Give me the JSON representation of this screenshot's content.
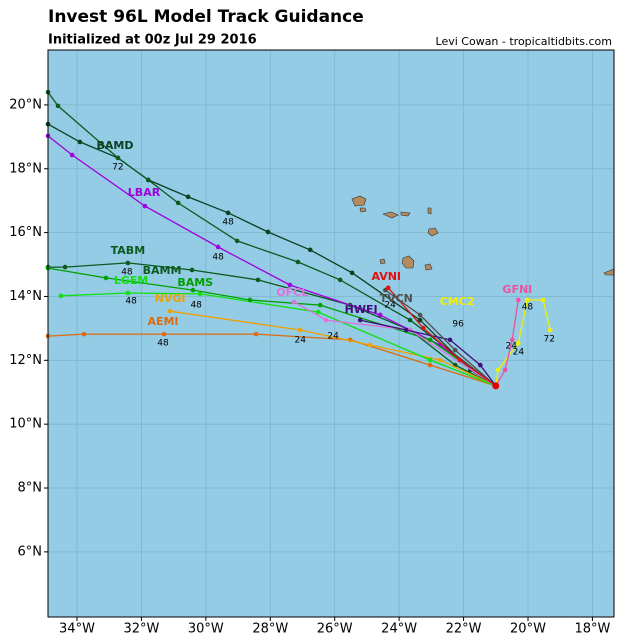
{
  "header": {
    "title": "Invest 96L Model Track Guidance",
    "subtitle": "Initialized at 00z Jul 29 2016",
    "credit": "Levi Cowan - tropicaltidbits.com"
  },
  "map": {
    "type": "map",
    "xlim": [
      -34.9,
      -17.33
    ],
    "ylim": [
      3.96,
      21.72
    ],
    "xticks": [
      {
        "value": -34,
        "label": "34°W"
      },
      {
        "value": -32,
        "label": "32°W"
      },
      {
        "value": -30,
        "label": "30°W"
      },
      {
        "value": -28,
        "label": "28°W"
      },
      {
        "value": -26,
        "label": "26°W"
      },
      {
        "value": -24,
        "label": "24°W"
      },
      {
        "value": -22,
        "label": "22°W"
      },
      {
        "value": -20,
        "label": "20°W"
      },
      {
        "value": -18,
        "label": "18°W"
      }
    ],
    "yticks": [
      {
        "value": 6,
        "label": "6°N"
      },
      {
        "value": 8,
        "label": "8°N"
      },
      {
        "value": 10,
        "label": "10°N"
      },
      {
        "value": 12,
        "label": "12°N"
      },
      {
        "value": 14,
        "label": "14°N"
      },
      {
        "value": 16,
        "label": "16°N"
      },
      {
        "value": 18,
        "label": "18°N"
      },
      {
        "value": 20,
        "label": "20°N"
      }
    ],
    "grid": true,
    "tracks": [
      {
        "name": "TABM",
        "color": "#0b5a1e",
        "label_lon": -32.42,
        "label_lat": 15.42,
        "lon": [
          -21.0,
          -22.26,
          -23.66,
          -25.52,
          -28.38,
          -30.43,
          -32.42,
          -34.37,
          -34.9
        ],
        "lat": [
          11.2,
          11.85,
          12.95,
          13.73,
          14.52,
          14.83,
          15.05,
          14.92,
          14.92
        ]
      },
      {
        "name": "BAMD",
        "color": "#0b4020",
        "label_lon": -32.82,
        "label_lat": 18.71,
        "lon": [
          -21.0,
          -21.79,
          -23.35,
          -25.46,
          -26.76,
          -28.07,
          -29.31,
          -30.55,
          -31.79,
          -32.73,
          -33.91,
          -34.9
        ],
        "lat": [
          11.2,
          11.7,
          13.26,
          14.74,
          15.46,
          16.02,
          16.62,
          17.12,
          17.65,
          18.34,
          18.84,
          19.4
        ]
      },
      {
        "name": "BAMM",
        "color": "#0b5a1e",
        "label_lon": -31.36,
        "label_lat": 14.8,
        "lon": [
          -21.0,
          -23.66,
          -25.83,
          -27.14,
          -29.03,
          -30.86,
          -31.79,
          -32.73,
          -34.59,
          -34.9
        ],
        "lat": [
          11.2,
          13.26,
          14.52,
          15.08,
          15.74,
          16.93,
          17.65,
          18.34,
          19.97,
          20.4
        ]
      },
      {
        "name": "LBAR",
        "color": "#a000e0",
        "label_lon": -31.92,
        "label_lat": 17.24,
        "lon": [
          -21.0,
          -22.73,
          -24.59,
          -27.39,
          -29.62,
          -31.89,
          -34.15,
          -34.9
        ],
        "lat": [
          11.2,
          12.48,
          13.42,
          14.36,
          15.55,
          16.83,
          18.43,
          19.03
        ]
      },
      {
        "name": "AEMI",
        "color": "#e06a10",
        "label_lon": -31.33,
        "label_lat": 13.2,
        "lon": [
          -21.0,
          -23.04,
          -25.52,
          -28.44,
          -31.3,
          -33.78,
          -34.9
        ],
        "lat": [
          11.2,
          11.85,
          12.64,
          12.82,
          12.82,
          12.82,
          12.76
        ]
      },
      {
        "name": "NVGI",
        "color": "#f0a000",
        "label_lon": -31.11,
        "label_lat": 13.92,
        "lon": [
          -21.0,
          -22.73,
          -24.9,
          -27.07,
          -31.11
        ],
        "lat": [
          11.2,
          12.01,
          12.48,
          12.95,
          13.54
        ]
      },
      {
        "name": "LGEM",
        "color": "#10e010",
        "label_lon": -32.32,
        "label_lat": 14.48,
        "lon": [
          -21.0,
          -23.04,
          -26.51,
          -30.18,
          -32.42,
          -34.5
        ],
        "lat": [
          11.2,
          12.01,
          13.51,
          14.08,
          14.11,
          14.02
        ]
      },
      {
        "name": "BAMS",
        "color": "#00a000",
        "label_lon": -30.33,
        "label_lat": 14.42,
        "lon": [
          -21.0,
          -23.04,
          -26.45,
          -28.63,
          -30.4,
          -33.1,
          -34.9
        ],
        "lat": [
          11.2,
          12.64,
          13.73,
          13.89,
          14.2,
          14.58,
          14.89
        ]
      },
      {
        "name": "OFCL",
        "color": "#e070e0",
        "label_lon": -27.32,
        "label_lat": 14.11,
        "lon": [
          -21.0,
          -23.66,
          -26.27,
          -27.26
        ],
        "lat": [
          11.2,
          12.95,
          13.26,
          13.83
        ]
      },
      {
        "name": "HWFI",
        "color": "#40107a",
        "label_lon": -25.18,
        "label_lat": 13.58,
        "lon": [
          -21.0,
          -21.48,
          -22.42,
          -23.78,
          -25.21
        ],
        "lat": [
          11.2,
          11.85,
          12.64,
          12.95,
          13.26
        ]
      },
      {
        "name": "TVCN",
        "color": "#505050",
        "label_lon": -24.09,
        "label_lat": 13.92,
        "lon": [
          -21.0,
          -22.26,
          -23.35,
          -24.43
        ],
        "lat": [
          11.2,
          12.32,
          13.42,
          14.2
        ]
      },
      {
        "name": "AVNI",
        "color": "#e01010",
        "label_lon": -24.4,
        "label_lat": 14.61,
        "lon": [
          -21.0,
          -22.11,
          -23.25,
          -24.34
        ],
        "lat": [
          11.2,
          12.01,
          13.01,
          14.27
        ]
      },
      {
        "name": "CMC2",
        "color": "#f0f000",
        "label_lon": -22.2,
        "label_lat": 13.83,
        "lon": [
          -21.0,
          -20.93,
          -20.3,
          -20.02,
          -19.53,
          -19.31
        ],
        "lat": [
          11.2,
          11.7,
          12.54,
          13.89,
          13.89,
          12.95
        ]
      },
      {
        "name": "GFNI",
        "color": "#f050a0",
        "label_lon": -20.33,
        "label_lat": 14.2,
        "lon": [
          -21.0,
          -20.71,
          -20.49,
          -20.3
        ],
        "lat": [
          11.2,
          11.7,
          12.64,
          13.89
        ]
      }
    ],
    "hour_labels": [
      {
        "text": "72",
        "lon": -32.73,
        "lat": 18.05
      },
      {
        "text": "48",
        "lon": -29.31,
        "lat": 16.33
      },
      {
        "text": "48",
        "lon": -29.62,
        "lat": 15.24
      },
      {
        "text": "48",
        "lon": -32.45,
        "lat": 14.77
      },
      {
        "text": "48",
        "lon": -32.32,
        "lat": 13.86
      },
      {
        "text": "48",
        "lon": -30.3,
        "lat": 13.73
      },
      {
        "text": "48",
        "lon": -31.33,
        "lat": 12.54
      },
      {
        "text": "24",
        "lon": -27.07,
        "lat": 12.64
      },
      {
        "text": "24",
        "lon": -26.05,
        "lat": 12.76
      },
      {
        "text": "96",
        "lon": -22.17,
        "lat": 13.14
      },
      {
        "text": "72",
        "lon": -19.34,
        "lat": 12.67
      },
      {
        "text": "48",
        "lon": -20.02,
        "lat": 13.67
      },
      {
        "text": "24",
        "lon": -20.52,
        "lat": 12.45
      },
      {
        "text": "24",
        "lon": -20.3,
        "lat": 12.26
      },
      {
        "text": "24",
        "lon": -24.28,
        "lat": 13.73
      }
    ]
  }
}
